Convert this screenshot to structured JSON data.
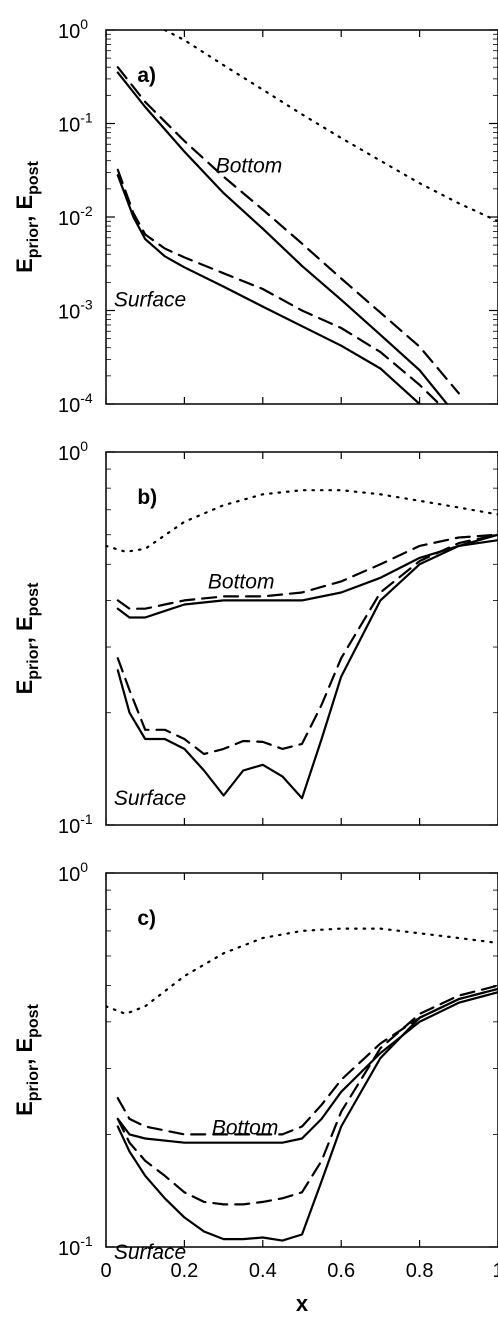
{
  "chart_data": [
    {
      "type": "line",
      "panel_label": "a)",
      "y_scale": "log",
      "ylim": [
        0.0001,
        1
      ],
      "xlim": [
        0,
        1
      ],
      "y_ticks": [
        "-4",
        "-3",
        "-2",
        "-1",
        "0"
      ],
      "y_tick_base": "10",
      "y_label_main": "E",
      "y_label_sub1": "prior",
      "y_label_sep": ", E",
      "y_label_sub2": "post",
      "annotations": [
        {
          "text": "Bottom",
          "x": 0.28,
          "y": 0.03
        },
        {
          "text": "Surface",
          "x": 0.02,
          "y": 0.0011
        }
      ],
      "series": [
        {
          "style": "solid",
          "group": "Bottom",
          "x": [
            0.03,
            0.1,
            0.2,
            0.3,
            0.4,
            0.5,
            0.6,
            0.7,
            0.8,
            0.87
          ],
          "y": [
            0.35,
            0.15,
            0.05,
            0.018,
            0.0075,
            0.003,
            0.0013,
            0.00055,
            0.00023,
            0.0001
          ]
        },
        {
          "style": "dashed",
          "group": "Bottom",
          "x": [
            0.03,
            0.1,
            0.2,
            0.3,
            0.4,
            0.5,
            0.6,
            0.7,
            0.8,
            0.9
          ],
          "y": [
            0.4,
            0.17,
            0.065,
            0.027,
            0.012,
            0.0052,
            0.0022,
            0.00095,
            0.00041,
            0.00013
          ]
        },
        {
          "style": "solid",
          "group": "Surface",
          "x": [
            0.03,
            0.07,
            0.1,
            0.15,
            0.2,
            0.3,
            0.4,
            0.5,
            0.6,
            0.7,
            0.8
          ],
          "y": [
            0.028,
            0.01,
            0.0058,
            0.0038,
            0.0029,
            0.0018,
            0.0011,
            0.00068,
            0.00042,
            0.00024,
            0.0001
          ]
        },
        {
          "style": "dashed",
          "group": "Surface",
          "x": [
            0.03,
            0.07,
            0.1,
            0.15,
            0.2,
            0.3,
            0.4,
            0.5,
            0.6,
            0.7,
            0.8,
            0.85
          ],
          "y": [
            0.032,
            0.011,
            0.0065,
            0.0046,
            0.0037,
            0.0025,
            0.0017,
            0.001,
            0.00065,
            0.00036,
            0.00016,
            0.0001
          ]
        },
        {
          "style": "dotted",
          "group": "prior",
          "x": [
            0.15,
            0.2,
            0.3,
            0.4,
            0.5,
            0.6,
            0.7,
            0.8,
            0.9,
            1.0
          ],
          "y": [
            1.0,
            0.78,
            0.42,
            0.23,
            0.125,
            0.07,
            0.04,
            0.023,
            0.014,
            0.009
          ]
        }
      ]
    },
    {
      "type": "line",
      "panel_label": "b)",
      "y_scale": "log",
      "ylim": [
        0.1,
        1
      ],
      "xlim": [
        0,
        1
      ],
      "y_ticks": [
        "-1",
        "0"
      ],
      "y_tick_base": "10",
      "y_label_main": "E",
      "y_label_sub1": "prior",
      "y_label_sep": ", E",
      "y_label_sub2": "post",
      "annotations": [
        {
          "text": "Bottom",
          "x": 0.26,
          "y": 0.43
        },
        {
          "text": "Surface",
          "x": 0.02,
          "y": 0.113
        }
      ],
      "series": [
        {
          "style": "solid",
          "group": "Bottom",
          "x": [
            0.03,
            0.06,
            0.1,
            0.15,
            0.2,
            0.3,
            0.4,
            0.5,
            0.6,
            0.7,
            0.8,
            0.9,
            1.0
          ],
          "y": [
            0.38,
            0.36,
            0.36,
            0.375,
            0.39,
            0.4,
            0.4,
            0.4,
            0.42,
            0.46,
            0.52,
            0.56,
            0.58
          ]
        },
        {
          "style": "dashed",
          "group": "Bottom",
          "x": [
            0.03,
            0.06,
            0.1,
            0.15,
            0.2,
            0.3,
            0.4,
            0.5,
            0.6,
            0.7,
            0.8,
            0.9,
            1.0
          ],
          "y": [
            0.4,
            0.38,
            0.38,
            0.39,
            0.4,
            0.41,
            0.41,
            0.42,
            0.45,
            0.5,
            0.56,
            0.59,
            0.6
          ]
        },
        {
          "style": "solid",
          "group": "Surface",
          "x": [
            0.03,
            0.06,
            0.1,
            0.15,
            0.2,
            0.25,
            0.3,
            0.35,
            0.4,
            0.45,
            0.5,
            0.55,
            0.6,
            0.7,
            0.8,
            0.9,
            1.0
          ],
          "y": [
            0.26,
            0.2,
            0.17,
            0.17,
            0.16,
            0.14,
            0.12,
            0.14,
            0.145,
            0.135,
            0.118,
            0.17,
            0.25,
            0.4,
            0.5,
            0.56,
            0.6
          ]
        },
        {
          "style": "dashed",
          "group": "Surface",
          "x": [
            0.03,
            0.06,
            0.1,
            0.15,
            0.2,
            0.25,
            0.3,
            0.35,
            0.4,
            0.45,
            0.5,
            0.55,
            0.6,
            0.7,
            0.8,
            0.9,
            1.0
          ],
          "y": [
            0.28,
            0.23,
            0.18,
            0.18,
            0.17,
            0.155,
            0.16,
            0.168,
            0.167,
            0.16,
            0.165,
            0.21,
            0.28,
            0.42,
            0.51,
            0.57,
            0.6
          ]
        },
        {
          "style": "dotted",
          "group": "prior",
          "x": [
            0.0,
            0.05,
            0.1,
            0.2,
            0.3,
            0.4,
            0.5,
            0.6,
            0.7,
            0.8,
            0.9,
            1.0
          ],
          "y": [
            0.56,
            0.54,
            0.55,
            0.65,
            0.72,
            0.77,
            0.79,
            0.79,
            0.77,
            0.74,
            0.71,
            0.68
          ]
        }
      ]
    },
    {
      "type": "line",
      "panel_label": "c)",
      "y_scale": "log",
      "ylim": [
        0.1,
        1
      ],
      "xlim": [
        0,
        1
      ],
      "x_ticks": [
        "0",
        "0.2",
        "0.4",
        "0.6",
        "0.8",
        "1"
      ],
      "y_ticks": [
        "-1",
        "0"
      ],
      "y_tick_base": "10",
      "y_label_main": "E",
      "y_label_sub1": "prior",
      "y_label_sep": ", E",
      "y_label_sub2": "post",
      "xlabel": "x",
      "annotations": [
        {
          "text": "Bottom",
          "x": 0.27,
          "y": 0.2
        },
        {
          "text": "Surface",
          "x": 0.02,
          "y": 0.093
        }
      ],
      "series": [
        {
          "style": "solid",
          "group": "Bottom",
          "x": [
            0.03,
            0.06,
            0.1,
            0.2,
            0.3,
            0.4,
            0.45,
            0.5,
            0.55,
            0.6,
            0.7,
            0.8,
            0.9,
            1.0
          ],
          "y": [
            0.22,
            0.2,
            0.195,
            0.19,
            0.19,
            0.19,
            0.19,
            0.195,
            0.22,
            0.26,
            0.33,
            0.4,
            0.45,
            0.48
          ]
        },
        {
          "style": "dashed",
          "group": "Bottom",
          "x": [
            0.03,
            0.06,
            0.1,
            0.2,
            0.3,
            0.4,
            0.45,
            0.5,
            0.55,
            0.6,
            0.7,
            0.8,
            0.9,
            1.0
          ],
          "y": [
            0.25,
            0.22,
            0.21,
            0.2,
            0.2,
            0.2,
            0.2,
            0.21,
            0.24,
            0.28,
            0.35,
            0.41,
            0.46,
            0.49
          ]
        },
        {
          "style": "solid",
          "group": "Surface",
          "x": [
            0.03,
            0.06,
            0.1,
            0.15,
            0.2,
            0.25,
            0.3,
            0.35,
            0.4,
            0.45,
            0.5,
            0.55,
            0.6,
            0.7,
            0.8,
            0.9,
            1.0
          ],
          "y": [
            0.21,
            0.18,
            0.155,
            0.135,
            0.12,
            0.11,
            0.105,
            0.105,
            0.106,
            0.104,
            0.108,
            0.15,
            0.21,
            0.32,
            0.41,
            0.46,
            0.49
          ]
        },
        {
          "style": "dashed",
          "group": "Surface",
          "x": [
            0.03,
            0.06,
            0.1,
            0.15,
            0.2,
            0.25,
            0.3,
            0.35,
            0.4,
            0.45,
            0.5,
            0.55,
            0.6,
            0.7,
            0.8,
            0.9,
            1.0
          ],
          "y": [
            0.22,
            0.19,
            0.17,
            0.155,
            0.14,
            0.132,
            0.13,
            0.13,
            0.132,
            0.135,
            0.14,
            0.17,
            0.23,
            0.34,
            0.42,
            0.47,
            0.5
          ]
        },
        {
          "style": "dotted",
          "group": "prior",
          "x": [
            0.0,
            0.05,
            0.1,
            0.2,
            0.3,
            0.4,
            0.5,
            0.6,
            0.7,
            0.8,
            0.9,
            1.0
          ],
          "y": [
            0.44,
            0.42,
            0.44,
            0.53,
            0.61,
            0.67,
            0.7,
            0.71,
            0.71,
            0.69,
            0.67,
            0.65
          ]
        }
      ]
    }
  ]
}
